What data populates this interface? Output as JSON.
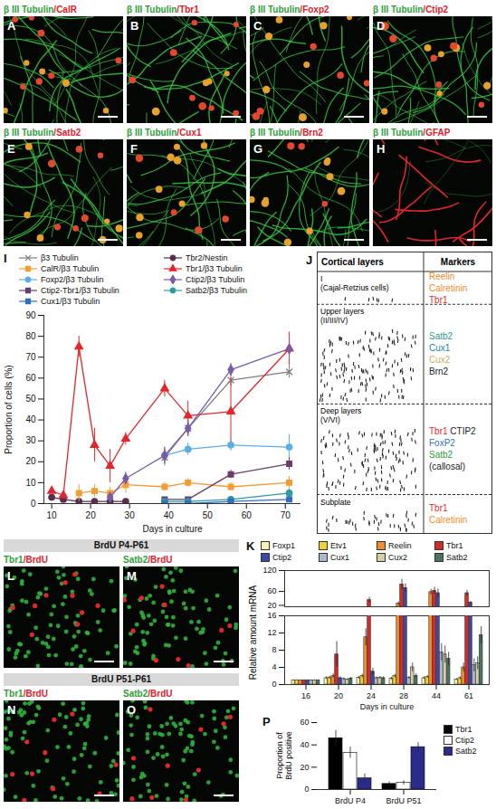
{
  "micrographs": [
    {
      "panel": "A",
      "stains": [
        {
          "text": "β III Tubulin",
          "color": "#2e9e3a"
        },
        {
          "text": "/CalR",
          "color": "#e0202a"
        }
      ]
    },
    {
      "panel": "B",
      "stains": [
        {
          "text": "β III Tubulin",
          "color": "#2e9e3a"
        },
        {
          "text": "/Tbr1",
          "color": "#e0202a"
        }
      ]
    },
    {
      "panel": "C",
      "stains": [
        {
          "text": "β III Tubulin",
          "color": "#2e9e3a"
        },
        {
          "text": "/Foxp2",
          "color": "#e0202a"
        }
      ]
    },
    {
      "panel": "D",
      "stains": [
        {
          "text": "β III Tubulin",
          "color": "#2e9e3a"
        },
        {
          "text": "/Ctip2",
          "color": "#e0202a"
        }
      ]
    },
    {
      "panel": "E",
      "stains": [
        {
          "text": "β III Tubulin",
          "color": "#2e9e3a"
        },
        {
          "text": "/Satb2",
          "color": "#e0202a"
        }
      ]
    },
    {
      "panel": "F",
      "stains": [
        {
          "text": "β III Tubulin",
          "color": "#2e9e3a"
        },
        {
          "text": "/Cux1",
          "color": "#e0202a"
        }
      ]
    },
    {
      "panel": "G",
      "stains": [
        {
          "text": "β III Tubulin",
          "color": "#2e9e3a"
        },
        {
          "text": "/Brn2",
          "color": "#e0202a"
        }
      ]
    },
    {
      "panel": "H",
      "stains": [
        {
          "text": "β III Tubulin",
          "color": "#2e9e3a"
        },
        {
          "text": "/GFAP",
          "color": "#e0202a"
        }
      ]
    }
  ],
  "brdu_groups": [
    {
      "title": "BrdU P4-P61",
      "panels": [
        {
          "panel": "L",
          "stains": [
            {
              "text": "Tbr1",
              "color": "#2e9e3a"
            },
            {
              "text": "/BrdU",
              "color": "#e0202a"
            }
          ]
        },
        {
          "panel": "M",
          "stains": [
            {
              "text": "Satb2",
              "color": "#2e9e3a"
            },
            {
              "text": "/BrdU",
              "color": "#e0202a"
            }
          ]
        }
      ]
    },
    {
      "title": "BrdU P51-P61",
      "panels": [
        {
          "panel": "N",
          "stains": [
            {
              "text": "Tbr1",
              "color": "#2e9e3a"
            },
            {
              "text": "/BrdU",
              "color": "#e0202a"
            }
          ]
        },
        {
          "panel": "O",
          "stains": [
            {
              "text": "Satb2",
              "color": "#2e9e3a"
            },
            {
              "text": "/BrdU",
              "color": "#e0202a"
            }
          ]
        }
      ]
    }
  ],
  "diagram": {
    "panel": "J",
    "header": [
      "Cortical layers",
      "Markers"
    ],
    "rows": [
      {
        "layer": [
          "I",
          "(Cajal-Retzius cells)"
        ],
        "markers": [
          [
            {
              "text": "Reelin",
              "color": "#f08c1e"
            }
          ],
          [
            {
              "text": "Calretinin",
              "color": "#f08c1e"
            }
          ],
          [
            {
              "text": "Tbr1",
              "color": "#e3262b"
            }
          ]
        ]
      },
      {
        "layer": [
          "Upper layers",
          "(II/III/IV)"
        ],
        "markers": [
          [
            {
              "text": "Satb2",
              "color": "#1f9e89"
            }
          ],
          [
            {
              "text": "Cux1",
              "color": "#1f7fb4"
            }
          ],
          [
            {
              "text": "Cux2",
              "color": "#c9b060"
            }
          ],
          [
            {
              "text": "Brn2",
              "color": "#222222"
            }
          ]
        ]
      },
      {
        "layer": [
          "Deep layers",
          "(V/VI)"
        ],
        "markers": [
          [
            {
              "text": "Tbr1",
              "color": "#e3262b"
            },
            {
              "text": "CTIP2",
              "color": "#222222"
            }
          ],
          [
            {
              "text": "FoxP2",
              "color": "#3a6fc0"
            }
          ],
          [
            {
              "text": "Satb2",
              "color": "#2e9e3a"
            }
          ],
          [
            {
              "text": "(callosal)",
              "color": "#222222"
            }
          ]
        ]
      },
      {
        "layer": [
          "Subplate"
        ],
        "markers": [
          [
            {
              "text": "Tbr1",
              "color": "#e3262b"
            }
          ],
          [
            {
              "text": "Calretinin",
              "color": "#f08c1e"
            }
          ]
        ]
      }
    ]
  },
  "chart_data": [
    {
      "panel": "I",
      "type": "line",
      "x_label": "Days in culture",
      "y_label": "Proportion of cells (%)",
      "x": [
        10,
        13,
        17,
        21,
        25,
        29,
        39,
        45,
        56,
        71
      ],
      "xlim": [
        8,
        74
      ],
      "xticks": [
        10,
        20,
        30,
        40,
        50,
        60,
        70
      ],
      "ylim": [
        0,
        90
      ],
      "yticks": [
        0,
        10,
        20,
        30,
        40,
        50,
        60,
        70,
        80,
        90
      ],
      "legend": "top",
      "series": [
        {
          "name": "β3 Tubulin",
          "color": "#7f7f7f",
          "marker": "times",
          "values": [
            null,
            null,
            null,
            null,
            null,
            null,
            22,
            36,
            59,
            63
          ],
          "errors": [
            null,
            null,
            null,
            null,
            null,
            null,
            4,
            4,
            3,
            3
          ]
        },
        {
          "name": "Tbr2/Nestin",
          "color": "#5a2d50",
          "marker": "circle",
          "values": [
            3,
            2,
            1,
            1,
            1,
            1,
            null,
            null,
            null,
            null
          ],
          "errors": [
            0.5,
            0.5,
            0.5,
            0.3,
            0.3,
            0.3,
            null,
            null,
            null,
            null
          ]
        },
        {
          "name": "CalR/β3 Tubulin",
          "color": "#f39c34",
          "marker": "square",
          "values": [
            null,
            null,
            5,
            6,
            5,
            9,
            8,
            10,
            8,
            10
          ],
          "errors": [
            null,
            null,
            4,
            3,
            3,
            4,
            2,
            2,
            2,
            3
          ]
        },
        {
          "name": "Tbr1/β3 Tubulin",
          "color": "#e3262b",
          "marker": "triangle",
          "values": [
            6,
            4,
            75,
            28,
            18,
            31,
            55,
            42,
            44,
            74
          ],
          "errors": [
            1,
            1,
            5,
            8,
            8,
            3,
            4,
            7,
            16,
            8
          ]
        },
        {
          "name": "Foxp2/β3 Tubulin",
          "color": "#5aaee6",
          "marker": "circle",
          "values": [
            null,
            null,
            null,
            null,
            null,
            null,
            23,
            26,
            28,
            27
          ],
          "errors": [
            null,
            null,
            null,
            null,
            null,
            null,
            4,
            3,
            3,
            6
          ]
        },
        {
          "name": "Ctip2/β3 Tubulin",
          "color": "#7b5aa6",
          "marker": "diamond",
          "values": [
            null,
            null,
            null,
            null,
            3,
            12,
            23,
            36,
            64,
            74
          ],
          "errors": [
            null,
            null,
            null,
            null,
            1,
            3,
            4,
            4,
            3,
            5
          ]
        },
        {
          "name": "Ctip2-Tbr1/β3 Tubulin",
          "color": "#6b3d6b",
          "marker": "square",
          "values": [
            null,
            null,
            null,
            null,
            null,
            null,
            2,
            2,
            14,
            19
          ],
          "errors": [
            null,
            null,
            null,
            null,
            null,
            null,
            1,
            1,
            2,
            3
          ]
        },
        {
          "name": "Satb2/β3 Tubulin",
          "color": "#2c9c9c",
          "marker": "circle",
          "values": [
            null,
            null,
            null,
            null,
            null,
            null,
            1,
            1,
            2,
            5
          ],
          "errors": [
            null,
            null,
            null,
            null,
            null,
            null,
            0.5,
            0.5,
            1,
            2
          ]
        },
        {
          "name": "Cux1/β3 Tubulin",
          "color": "#2f6fc0",
          "marker": "square",
          "values": [
            null,
            null,
            null,
            null,
            null,
            null,
            0,
            0,
            1,
            2
          ],
          "errors": [
            null,
            null,
            null,
            null,
            null,
            null,
            0.3,
            0.3,
            0.5,
            1
          ]
        }
      ]
    },
    {
      "panel": "K",
      "type": "bar",
      "x_label": "Days in culture",
      "y_label": "Relative amount mRNA",
      "categories": [
        "16",
        "20",
        "24",
        "28",
        "44",
        "61"
      ],
      "segments": [
        {
          "ylim": [
            16,
            120
          ],
          "yticks": [
            20,
            60,
            120
          ]
        },
        {
          "ylim": [
            0,
            16
          ],
          "yticks": [
            0,
            4,
            8,
            12,
            16
          ]
        }
      ],
      "legend": "top",
      "series": [
        {
          "name": "Foxp1",
          "color": "#f7f3b5",
          "values": [
            1,
            1.5,
            1.6,
            1.4,
            1.5,
            1.2
          ],
          "errors": [
            0.1,
            0.3,
            0.3,
            0.3,
            0.3,
            0.2
          ]
        },
        {
          "name": "Etv1",
          "color": "#f2d22e",
          "values": [
            1,
            1.6,
            2,
            2,
            1.8,
            1.5
          ],
          "errors": [
            0.1,
            0.3,
            0.4,
            0.4,
            0.3,
            0.3
          ]
        },
        {
          "name": "Reelin",
          "color": "#f08c2a",
          "values": [
            1,
            2,
            11,
            25,
            58,
            4
          ],
          "errors": [
            0.1,
            0.5,
            2,
            5,
            8,
            1
          ]
        },
        {
          "name": "Tbr1",
          "color": "#d42a2a",
          "values": [
            1,
            7,
            35,
            80,
            62,
            55
          ],
          "errors": [
            0.1,
            3,
            8,
            15,
            10,
            8
          ]
        },
        {
          "name": "Ctip2",
          "color": "#3b4a9c",
          "values": [
            1,
            1.5,
            3,
            70,
            55,
            28
          ],
          "errors": [
            0.1,
            0.3,
            0.8,
            12,
            12,
            4
          ]
        },
        {
          "name": "Cux1",
          "color": "#aab8cc",
          "values": [
            1,
            1.3,
            1.5,
            1.6,
            7.5,
            4.5
          ],
          "errors": [
            0.1,
            0.3,
            0.3,
            0.3,
            2,
            1.5
          ]
        },
        {
          "name": "Cux2",
          "color": "#d6cfa6",
          "values": [
            1,
            1.2,
            1.6,
            4,
            7,
            5
          ],
          "errors": [
            0.1,
            0.2,
            0.3,
            1,
            2,
            1.5
          ]
        },
        {
          "name": "Satb2",
          "color": "#4b7562",
          "values": [
            1,
            1.4,
            1.5,
            2,
            6,
            11.5
          ],
          "errors": [
            0.1,
            0.3,
            0.3,
            0.5,
            1.5,
            2
          ]
        }
      ]
    },
    {
      "panel": "P",
      "type": "bar",
      "y_label": "Proportion of BrdU positive",
      "categories": [
        "BrdU P4",
        "BrdU P51"
      ],
      "ylim": [
        0,
        60
      ],
      "yticks": [
        0,
        20,
        40,
        60
      ],
      "legend": "right",
      "series": [
        {
          "name": "Tbr1",
          "color": "#000000",
          "values": [
            46,
            5
          ],
          "errors": [
            7,
            2
          ]
        },
        {
          "name": "Ctip2",
          "color": "#ffffff",
          "values": [
            33,
            6
          ],
          "errors": [
            5,
            2
          ]
        },
        {
          "name": "Satb2",
          "color": "#2b2b8c",
          "values": [
            10,
            38
          ],
          "errors": [
            4,
            4
          ]
        }
      ]
    }
  ]
}
